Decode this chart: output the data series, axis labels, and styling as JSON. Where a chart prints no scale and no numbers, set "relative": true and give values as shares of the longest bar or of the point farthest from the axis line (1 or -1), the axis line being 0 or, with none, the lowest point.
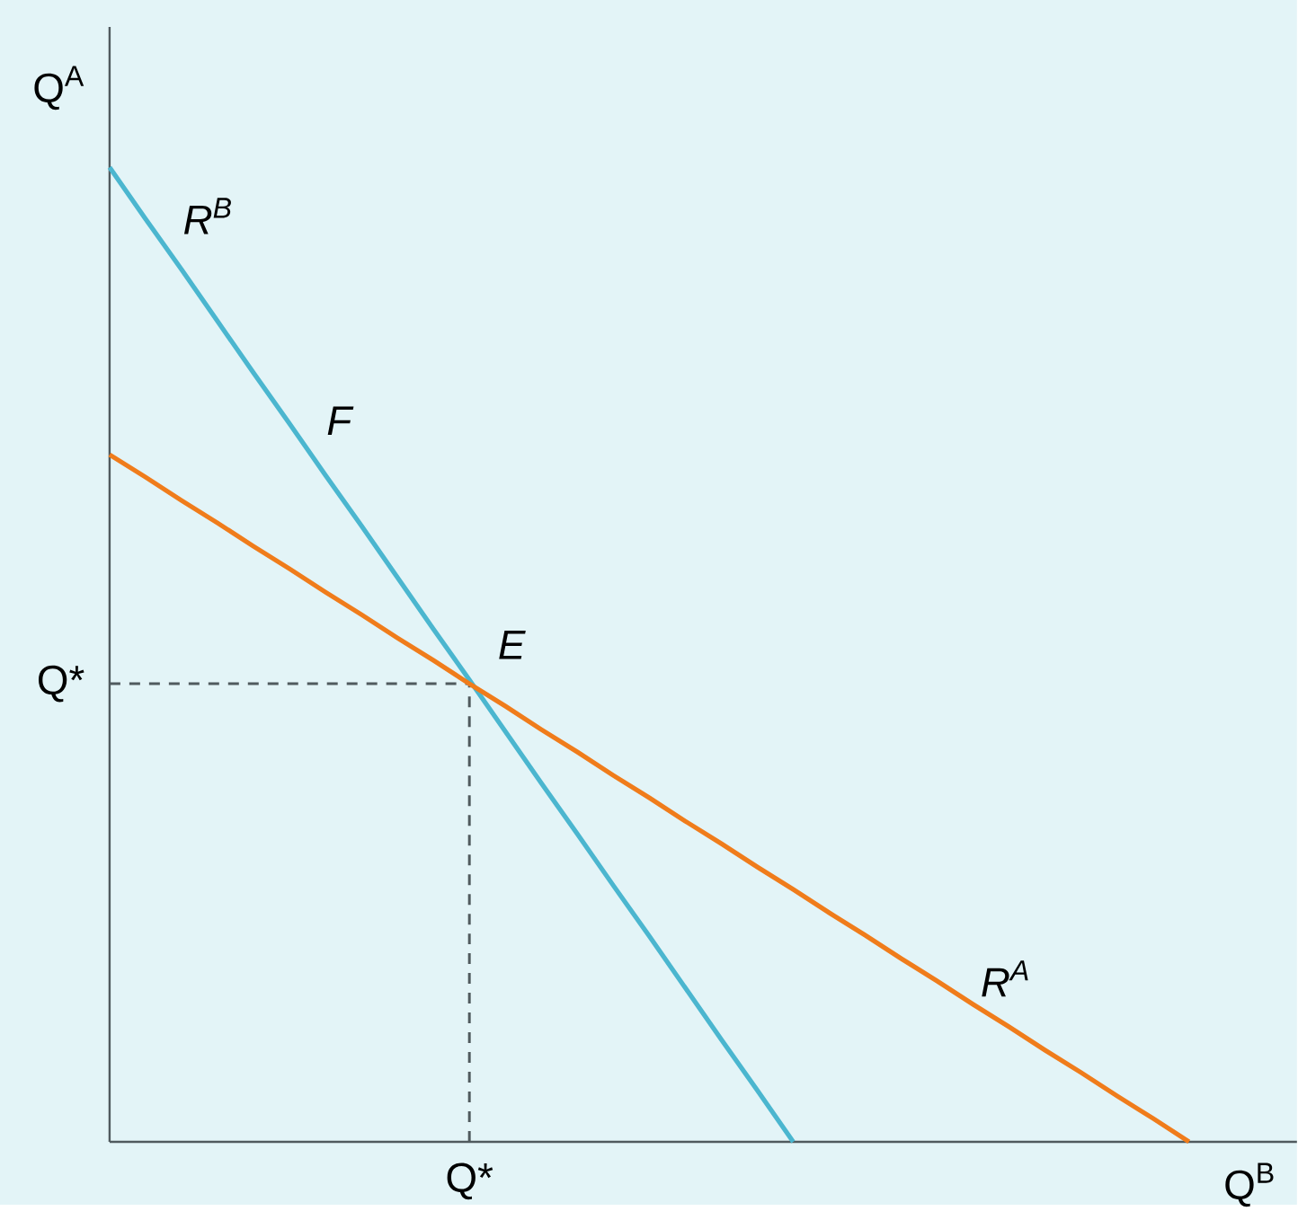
{
  "chart_data": {
    "type": "line",
    "xlabel": "Q$^{B}$",
    "ylabel": "Q$^{A}$",
    "relative": true,
    "categories": [
      null,
      null,
      null,
      null,
      null,
      null,
      null,
      null,
      null,
      null,
      null,
      null,
      null,
      null,
      null,
      null,
      null,
      null,
      null,
      null,
      null,
      null,
      null,
      null,
      null,
      null,
      null,
      null,
      null,
      null,
      null
    ],
    "series": [
      {
        "name": "R$^{B}$",
        "color": "#4bb6cf",
        "values": [
          1,
          0.947,
          0.895,
          0.842,
          0.789,
          0.737,
          0.684,
          0.632,
          0.579,
          0.526,
          0.474,
          0.421,
          0.368,
          0.316,
          0.263,
          0.211,
          0.158,
          0.105,
          0.053,
          0,
          null,
          null,
          null,
          null,
          null,
          null,
          null,
          null,
          null,
          null,
          null
        ]
      },
      {
        "name": "R$^{A}$",
        "color": "#f07c1b",
        "values": [
          0.705,
          0.682,
          0.658,
          0.635,
          0.611,
          0.588,
          0.564,
          0.541,
          0.517,
          0.494,
          0.47,
          0.447,
          0.423,
          0.4,
          0.376,
          0.353,
          0.329,
          0.306,
          0.282,
          0.259,
          0.235,
          0.212,
          0.188,
          0.165,
          0.141,
          0.118,
          0.094,
          0.071,
          0.047,
          0.024,
          0
        ]
      }
    ],
    "ref_lines": [
      {
        "axis": "y",
        "value": 0.47,
        "label": "Q*",
        "color": "#505a5e",
        "line_style": "dashed"
      },
      {
        "axis": "x",
        "label": "Q*",
        "color": "#505a5e",
        "line_style": "dashed"
      }
    ],
    "annotations": [
      "F",
      "E"
    ]
  }
}
